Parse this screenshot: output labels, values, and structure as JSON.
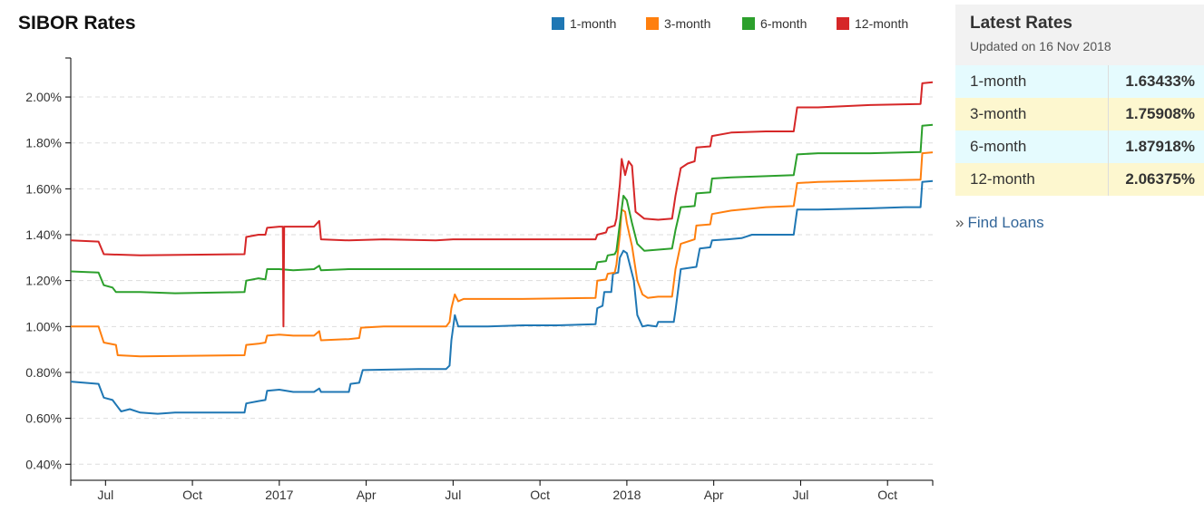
{
  "chart_data": {
    "type": "line",
    "title": "SIBOR Rates",
    "y_ticks": [
      "0.40%",
      "0.60%",
      "0.80%",
      "1.00%",
      "1.20%",
      "1.40%",
      "1.60%",
      "1.80%",
      "2.00%"
    ],
    "ylim": [
      0.33,
      2.17
    ],
    "x_ticks": [
      {
        "label": "Jul",
        "t": 2016.5
      },
      {
        "label": "Oct",
        "t": 2016.75
      },
      {
        "label": "2017",
        "t": 2017.0
      },
      {
        "label": "Apr",
        "t": 2017.25
      },
      {
        "label": "Jul",
        "t": 2017.5
      },
      {
        "label": "Oct",
        "t": 2017.75
      },
      {
        "label": "2018",
        "t": 2018.0
      },
      {
        "label": "Apr",
        "t": 2018.25
      },
      {
        "label": "Jul",
        "t": 2018.5
      },
      {
        "label": "Oct",
        "t": 2018.75
      }
    ],
    "xlim": [
      2016.4,
      2018.88
    ],
    "legend_position": "top-right",
    "grid": "horizontal dashed",
    "series": [
      {
        "name": "1-month",
        "color": "#1f77b4",
        "points": [
          [
            2016.4,
            0.76
          ],
          [
            2016.48,
            0.75
          ],
          [
            2016.495,
            0.69
          ],
          [
            2016.52,
            0.68
          ],
          [
            2016.545,
            0.63
          ],
          [
            2016.57,
            0.64
          ],
          [
            2016.6,
            0.625
          ],
          [
            2016.65,
            0.62
          ],
          [
            2016.7,
            0.625
          ],
          [
            2016.9,
            0.625
          ],
          [
            2016.905,
            0.665
          ],
          [
            2016.94,
            0.675
          ],
          [
            2016.96,
            0.68
          ],
          [
            2016.965,
            0.72
          ],
          [
            2017.0,
            0.725
          ],
          [
            2017.04,
            0.715
          ],
          [
            2017.1,
            0.715
          ],
          [
            2017.115,
            0.73
          ],
          [
            2017.12,
            0.715
          ],
          [
            2017.2,
            0.715
          ],
          [
            2017.205,
            0.75
          ],
          [
            2017.23,
            0.755
          ],
          [
            2017.24,
            0.81
          ],
          [
            2017.4,
            0.815
          ],
          [
            2017.48,
            0.815
          ],
          [
            2017.49,
            0.83
          ],
          [
            2017.495,
            0.94
          ],
          [
            2017.505,
            1.05
          ],
          [
            2017.515,
            1.0
          ],
          [
            2017.6,
            1.0
          ],
          [
            2017.7,
            1.005
          ],
          [
            2017.8,
            1.005
          ],
          [
            2017.91,
            1.01
          ],
          [
            2017.915,
            1.08
          ],
          [
            2017.93,
            1.09
          ],
          [
            2017.935,
            1.15
          ],
          [
            2017.955,
            1.15
          ],
          [
            2017.96,
            1.23
          ],
          [
            2017.975,
            1.235
          ],
          [
            2017.98,
            1.3
          ],
          [
            2017.99,
            1.33
          ],
          [
            2018.0,
            1.32
          ],
          [
            2018.02,
            1.2
          ],
          [
            2018.03,
            1.05
          ],
          [
            2018.045,
            1.0
          ],
          [
            2018.06,
            1.005
          ],
          [
            2018.085,
            1.0
          ],
          [
            2018.09,
            1.02
          ],
          [
            2018.135,
            1.02
          ],
          [
            2018.14,
            1.07
          ],
          [
            2018.155,
            1.25
          ],
          [
            2018.2,
            1.26
          ],
          [
            2018.21,
            1.34
          ],
          [
            2018.24,
            1.345
          ],
          [
            2018.245,
            1.375
          ],
          [
            2018.29,
            1.38
          ],
          [
            2018.33,
            1.385
          ],
          [
            2018.36,
            1.4
          ],
          [
            2018.4,
            1.4
          ],
          [
            2018.48,
            1.4
          ],
          [
            2018.49,
            1.51
          ],
          [
            2018.55,
            1.51
          ],
          [
            2018.7,
            1.515
          ],
          [
            2018.8,
            1.52
          ],
          [
            2018.845,
            1.52
          ],
          [
            2018.85,
            1.63
          ],
          [
            2018.88,
            1.634
          ]
        ]
      },
      {
        "name": "3-month",
        "color": "#ff7f0e",
        "points": [
          [
            2016.4,
            1.0
          ],
          [
            2016.48,
            1.0
          ],
          [
            2016.495,
            0.93
          ],
          [
            2016.53,
            0.92
          ],
          [
            2016.535,
            0.875
          ],
          [
            2016.6,
            0.87
          ],
          [
            2016.9,
            0.875
          ],
          [
            2016.905,
            0.92
          ],
          [
            2016.94,
            0.925
          ],
          [
            2016.96,
            0.93
          ],
          [
            2016.965,
            0.96
          ],
          [
            2017.0,
            0.965
          ],
          [
            2017.04,
            0.96
          ],
          [
            2017.1,
            0.96
          ],
          [
            2017.115,
            0.98
          ],
          [
            2017.12,
            0.94
          ],
          [
            2017.2,
            0.945
          ],
          [
            2017.23,
            0.95
          ],
          [
            2017.235,
            0.995
          ],
          [
            2017.3,
            1.0
          ],
          [
            2017.48,
            1.0
          ],
          [
            2017.49,
            1.02
          ],
          [
            2017.495,
            1.08
          ],
          [
            2017.505,
            1.14
          ],
          [
            2017.515,
            1.11
          ],
          [
            2017.53,
            1.12
          ],
          [
            2017.7,
            1.12
          ],
          [
            2017.91,
            1.125
          ],
          [
            2017.915,
            1.2
          ],
          [
            2017.94,
            1.205
          ],
          [
            2017.945,
            1.23
          ],
          [
            2017.965,
            1.235
          ],
          [
            2017.97,
            1.27
          ],
          [
            2017.98,
            1.4
          ],
          [
            2017.985,
            1.51
          ],
          [
            2017.995,
            1.5
          ],
          [
            2018.0,
            1.45
          ],
          [
            2018.015,
            1.35
          ],
          [
            2018.03,
            1.2
          ],
          [
            2018.045,
            1.14
          ],
          [
            2018.06,
            1.125
          ],
          [
            2018.09,
            1.13
          ],
          [
            2018.13,
            1.13
          ],
          [
            2018.14,
            1.25
          ],
          [
            2018.155,
            1.36
          ],
          [
            2018.195,
            1.38
          ],
          [
            2018.2,
            1.44
          ],
          [
            2018.24,
            1.445
          ],
          [
            2018.245,
            1.49
          ],
          [
            2018.3,
            1.505
          ],
          [
            2018.4,
            1.52
          ],
          [
            2018.48,
            1.525
          ],
          [
            2018.49,
            1.625
          ],
          [
            2018.55,
            1.63
          ],
          [
            2018.7,
            1.635
          ],
          [
            2018.845,
            1.64
          ],
          [
            2018.85,
            1.755
          ],
          [
            2018.88,
            1.759
          ]
        ]
      },
      {
        "name": "6-month",
        "color": "#2ca02c",
        "points": [
          [
            2016.4,
            1.24
          ],
          [
            2016.48,
            1.235
          ],
          [
            2016.495,
            1.18
          ],
          [
            2016.52,
            1.17
          ],
          [
            2016.53,
            1.15
          ],
          [
            2016.6,
            1.15
          ],
          [
            2016.7,
            1.145
          ],
          [
            2016.9,
            1.15
          ],
          [
            2016.905,
            1.2
          ],
          [
            2016.94,
            1.21
          ],
          [
            2016.96,
            1.205
          ],
          [
            2016.965,
            1.25
          ],
          [
            2017.0,
            1.25
          ],
          [
            2017.04,
            1.245
          ],
          [
            2017.1,
            1.25
          ],
          [
            2017.115,
            1.265
          ],
          [
            2017.12,
            1.245
          ],
          [
            2017.2,
            1.25
          ],
          [
            2017.3,
            1.25
          ],
          [
            2017.5,
            1.25
          ],
          [
            2017.7,
            1.25
          ],
          [
            2017.91,
            1.25
          ],
          [
            2017.915,
            1.28
          ],
          [
            2017.94,
            1.285
          ],
          [
            2017.945,
            1.31
          ],
          [
            2017.965,
            1.315
          ],
          [
            2017.97,
            1.33
          ],
          [
            2017.98,
            1.45
          ],
          [
            2017.99,
            1.57
          ],
          [
            2018.0,
            1.55
          ],
          [
            2018.015,
            1.45
          ],
          [
            2018.03,
            1.36
          ],
          [
            2018.05,
            1.33
          ],
          [
            2018.09,
            1.335
          ],
          [
            2018.13,
            1.34
          ],
          [
            2018.14,
            1.42
          ],
          [
            2018.155,
            1.52
          ],
          [
            2018.195,
            1.525
          ],
          [
            2018.2,
            1.58
          ],
          [
            2018.24,
            1.585
          ],
          [
            2018.245,
            1.645
          ],
          [
            2018.3,
            1.65
          ],
          [
            2018.4,
            1.655
          ],
          [
            2018.48,
            1.66
          ],
          [
            2018.49,
            1.75
          ],
          [
            2018.55,
            1.755
          ],
          [
            2018.7,
            1.755
          ],
          [
            2018.845,
            1.76
          ],
          [
            2018.85,
            1.875
          ],
          [
            2018.88,
            1.879
          ]
        ]
      },
      {
        "name": "12-month",
        "color": "#d62728",
        "points": [
          [
            2016.4,
            1.375
          ],
          [
            2016.48,
            1.37
          ],
          [
            2016.495,
            1.315
          ],
          [
            2016.6,
            1.31
          ],
          [
            2016.9,
            1.315
          ],
          [
            2016.905,
            1.39
          ],
          [
            2016.94,
            1.4
          ],
          [
            2016.96,
            1.4
          ],
          [
            2016.965,
            1.43
          ],
          [
            2017.0,
            1.435
          ],
          [
            2017.01,
            1.435
          ],
          [
            2017.012,
            1.0
          ],
          [
            2017.014,
            1.435
          ],
          [
            2017.04,
            1.435
          ],
          [
            2017.1,
            1.435
          ],
          [
            2017.115,
            1.46
          ],
          [
            2017.12,
            1.38
          ],
          [
            2017.2,
            1.375
          ],
          [
            2017.3,
            1.38
          ],
          [
            2017.45,
            1.375
          ],
          [
            2017.5,
            1.38
          ],
          [
            2017.7,
            1.38
          ],
          [
            2017.91,
            1.38
          ],
          [
            2017.915,
            1.4
          ],
          [
            2017.94,
            1.41
          ],
          [
            2017.945,
            1.43
          ],
          [
            2017.965,
            1.44
          ],
          [
            2017.97,
            1.47
          ],
          [
            2017.98,
            1.62
          ],
          [
            2017.985,
            1.73
          ],
          [
            2017.995,
            1.66
          ],
          [
            2018.005,
            1.72
          ],
          [
            2018.015,
            1.7
          ],
          [
            2018.025,
            1.5
          ],
          [
            2018.05,
            1.47
          ],
          [
            2018.09,
            1.465
          ],
          [
            2018.13,
            1.47
          ],
          [
            2018.14,
            1.57
          ],
          [
            2018.155,
            1.69
          ],
          [
            2018.175,
            1.71
          ],
          [
            2018.195,
            1.72
          ],
          [
            2018.2,
            1.78
          ],
          [
            2018.24,
            1.785
          ],
          [
            2018.245,
            1.83
          ],
          [
            2018.3,
            1.845
          ],
          [
            2018.4,
            1.85
          ],
          [
            2018.48,
            1.85
          ],
          [
            2018.49,
            1.955
          ],
          [
            2018.55,
            1.955
          ],
          [
            2018.7,
            1.965
          ],
          [
            2018.845,
            1.97
          ],
          [
            2018.85,
            2.06
          ],
          [
            2018.88,
            2.064
          ]
        ]
      }
    ]
  },
  "panel": {
    "title": "Latest Rates",
    "updated": "Updated on 16 Nov 2018",
    "rates": [
      {
        "name": "1-month",
        "value": "1.63433%"
      },
      {
        "name": "3-month",
        "value": "1.75908%"
      },
      {
        "name": "6-month",
        "value": "1.87918%"
      },
      {
        "name": "12-month",
        "value": "2.06375%"
      }
    ],
    "row_colors": [
      "#e5fbfe",
      "#fdf7cf"
    ]
  },
  "find_loans": {
    "chevron": "»",
    "label": "Find Loans"
  }
}
